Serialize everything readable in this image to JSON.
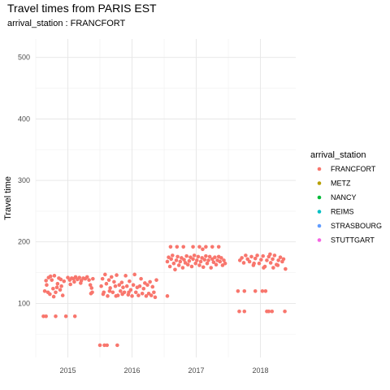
{
  "chart_data": {
    "type": "scatter",
    "title": "Travel times from PARIS EST",
    "subtitle": "arrival_station : FRANCFORT",
    "xlabel": "",
    "ylabel": "Travel time",
    "x_ticks": [
      "2015",
      "2016",
      "2017",
      "2018"
    ],
    "y_ticks": [
      "100",
      "200",
      "300",
      "400",
      "500"
    ],
    "xlim": [
      2014.5,
      2018.55
    ],
    "ylim": [
      12,
      530
    ],
    "grid": true,
    "legend_position": "right",
    "legend": {
      "title": "arrival_station",
      "entries": [
        {
          "label": "FRANCFORT",
          "color": "#F8766D"
        },
        {
          "label": "METZ",
          "color": "#B79F00"
        },
        {
          "label": "NANCY",
          "color": "#00BA38"
        },
        {
          "label": "REIMS",
          "color": "#00BFC4"
        },
        {
          "label": "STRASBOURG",
          "color": "#619CFF"
        },
        {
          "label": "STUTTGART",
          "color": "#F564E3"
        }
      ]
    },
    "series": [
      {
        "name": "FRANCFORT",
        "color": "#F8766D",
        "points": [
          [
            2014.62,
            79
          ],
          [
            2014.66,
            79
          ],
          [
            2014.81,
            79
          ],
          [
            2014.97,
            79
          ],
          [
            2015.11,
            79
          ],
          [
            2014.64,
            120
          ],
          [
            2014.67,
            130
          ],
          [
            2014.7,
            142
          ],
          [
            2014.72,
            115
          ],
          [
            2014.75,
            138
          ],
          [
            2014.77,
            124
          ],
          [
            2014.79,
            145
          ],
          [
            2014.81,
            118
          ],
          [
            2014.84,
            132
          ],
          [
            2014.86,
            141
          ],
          [
            2014.88,
            122
          ],
          [
            2014.9,
            128
          ],
          [
            2014.92,
            113
          ],
          [
            2014.94,
            136
          ],
          [
            2014.66,
            137
          ],
          [
            2014.69,
            118
          ],
          [
            2014.73,
            144
          ],
          [
            2014.78,
            111
          ],
          [
            2014.83,
            126
          ],
          [
            2014.89,
            139
          ],
          [
            2015.0,
            142
          ],
          [
            2015.03,
            138
          ],
          [
            2015.06,
            141
          ],
          [
            2015.09,
            140
          ],
          [
            2015.12,
            143
          ],
          [
            2015.15,
            139
          ],
          [
            2015.18,
            142
          ],
          [
            2015.21,
            137
          ],
          [
            2015.24,
            141
          ],
          [
            2015.27,
            140
          ],
          [
            2015.3,
            143
          ],
          [
            2015.33,
            138
          ],
          [
            2015.35,
            130
          ],
          [
            2015.37,
            125
          ],
          [
            2015.38,
            118
          ],
          [
            2015.36,
            116
          ],
          [
            2015.39,
            140
          ],
          [
            2015.04,
            131
          ],
          [
            2015.1,
            135
          ],
          [
            2015.2,
            133
          ],
          [
            2015.5,
            32
          ],
          [
            2015.57,
            32
          ],
          [
            2015.61,
            32
          ],
          [
            2015.77,
            32
          ],
          [
            2015.52,
            128
          ],
          [
            2015.54,
            140
          ],
          [
            2015.56,
            118
          ],
          [
            2015.58,
            147
          ],
          [
            2015.6,
            132
          ],
          [
            2015.62,
            112
          ],
          [
            2015.64,
            138
          ],
          [
            2015.66,
            125
          ],
          [
            2015.68,
            143
          ],
          [
            2015.7,
            118
          ],
          [
            2015.72,
            135
          ],
          [
            2015.74,
            128
          ],
          [
            2015.76,
            146
          ],
          [
            2015.78,
            113
          ],
          [
            2015.8,
            130
          ],
          [
            2015.82,
            120
          ],
          [
            2015.84,
            134
          ],
          [
            2015.86,
            126
          ],
          [
            2015.88,
            118
          ],
          [
            2015.9,
            145
          ],
          [
            2015.92,
            128
          ],
          [
            2015.94,
            114
          ],
          [
            2015.96,
            136
          ],
          [
            2015.98,
            122
          ],
          [
            2016.0,
            112
          ],
          [
            2016.02,
            130
          ],
          [
            2016.04,
            147
          ],
          [
            2016.06,
            118
          ],
          [
            2016.08,
            126
          ],
          [
            2016.1,
            113
          ],
          [
            2016.12,
            128
          ],
          [
            2016.14,
            140
          ],
          [
            2016.16,
            116
          ],
          [
            2016.18,
            124
          ],
          [
            2016.2,
            133
          ],
          [
            2016.22,
            112
          ],
          [
            2016.24,
            130
          ],
          [
            2016.26,
            116
          ],
          [
            2016.28,
            135
          ],
          [
            2016.3,
            113
          ],
          [
            2016.32,
            127
          ],
          [
            2016.34,
            118
          ],
          [
            2016.36,
            110
          ],
          [
            2016.38,
            138
          ],
          [
            2016.55,
            112
          ],
          [
            2015.55,
            115
          ],
          [
            2015.65,
            120
          ],
          [
            2015.75,
            112
          ],
          [
            2015.85,
            115
          ],
          [
            2015.95,
            118
          ],
          [
            2016.55,
            168
          ],
          [
            2016.57,
            175
          ],
          [
            2016.59,
            160
          ],
          [
            2016.61,
            172
          ],
          [
            2016.63,
            178
          ],
          [
            2016.65,
            165
          ],
          [
            2016.67,
            155
          ],
          [
            2016.69,
            170
          ],
          [
            2016.71,
            176
          ],
          [
            2016.73,
            162
          ],
          [
            2016.75,
            168
          ],
          [
            2016.77,
            174
          ],
          [
            2016.79,
            158
          ],
          [
            2016.81,
            171
          ],
          [
            2016.83,
            166
          ],
          [
            2016.85,
            177
          ],
          [
            2016.87,
            163
          ],
          [
            2016.89,
            169
          ],
          [
            2016.91,
            175
          ],
          [
            2016.93,
            160
          ],
          [
            2016.95,
            172
          ],
          [
            2016.97,
            178
          ],
          [
            2016.99,
            165
          ],
          [
            2017.01,
            170
          ],
          [
            2017.03,
            176
          ],
          [
            2017.05,
            162
          ],
          [
            2017.07,
            168
          ],
          [
            2017.09,
            174
          ],
          [
            2017.11,
            159
          ],
          [
            2017.13,
            171
          ],
          [
            2017.15,
            177
          ],
          [
            2017.17,
            165
          ],
          [
            2017.19,
            170
          ],
          [
            2017.21,
            176
          ],
          [
            2017.23,
            158
          ],
          [
            2017.25,
            172
          ],
          [
            2017.27,
            167
          ],
          [
            2017.29,
            175
          ],
          [
            2017.31,
            163
          ],
          [
            2017.33,
            170
          ],
          [
            2017.35,
            176
          ],
          [
            2017.37,
            168
          ],
          [
            2017.39,
            174
          ],
          [
            2017.41,
            162
          ],
          [
            2017.43,
            170
          ],
          [
            2017.45,
            165
          ],
          [
            2016.6,
            192
          ],
          [
            2016.7,
            192
          ],
          [
            2016.8,
            192
          ],
          [
            2016.95,
            192
          ],
          [
            2017.05,
            192
          ],
          [
            2017.15,
            192
          ],
          [
            2017.25,
            192
          ],
          [
            2017.35,
            192
          ],
          [
            2017.1,
            188
          ],
          [
            2017.65,
            120
          ],
          [
            2017.75,
            120
          ],
          [
            2017.92,
            120
          ],
          [
            2018.03,
            120
          ],
          [
            2018.08,
            120
          ],
          [
            2017.67,
            87
          ],
          [
            2017.75,
            87
          ],
          [
            2018.1,
            87
          ],
          [
            2018.13,
            87
          ],
          [
            2018.18,
            87
          ],
          [
            2018.38,
            87
          ],
          [
            2017.68,
            170
          ],
          [
            2017.71,
            174
          ],
          [
            2017.74,
            166
          ],
          [
            2017.77,
            178
          ],
          [
            2017.8,
            172
          ],
          [
            2017.83,
            168
          ],
          [
            2017.86,
            176
          ],
          [
            2017.89,
            162
          ],
          [
            2017.92,
            173
          ],
          [
            2017.95,
            178
          ],
          [
            2017.98,
            165
          ],
          [
            2018.01,
            171
          ],
          [
            2018.04,
            177
          ],
          [
            2018.07,
            160
          ],
          [
            2018.1,
            170
          ],
          [
            2018.13,
            176
          ],
          [
            2018.16,
            166
          ],
          [
            2018.19,
            172
          ],
          [
            2018.22,
            178
          ],
          [
            2018.25,
            163
          ],
          [
            2018.28,
            170
          ],
          [
            2018.31,
            175
          ],
          [
            2018.34,
            168
          ],
          [
            2018.36,
            172
          ],
          [
            2018.39,
            156
          ],
          [
            2018.2,
            158
          ],
          [
            2018.27,
            162
          ],
          [
            2017.9,
            165
          ],
          [
            2018.05,
            158
          ],
          [
            2018.15,
            180
          ]
        ]
      }
    ]
  }
}
